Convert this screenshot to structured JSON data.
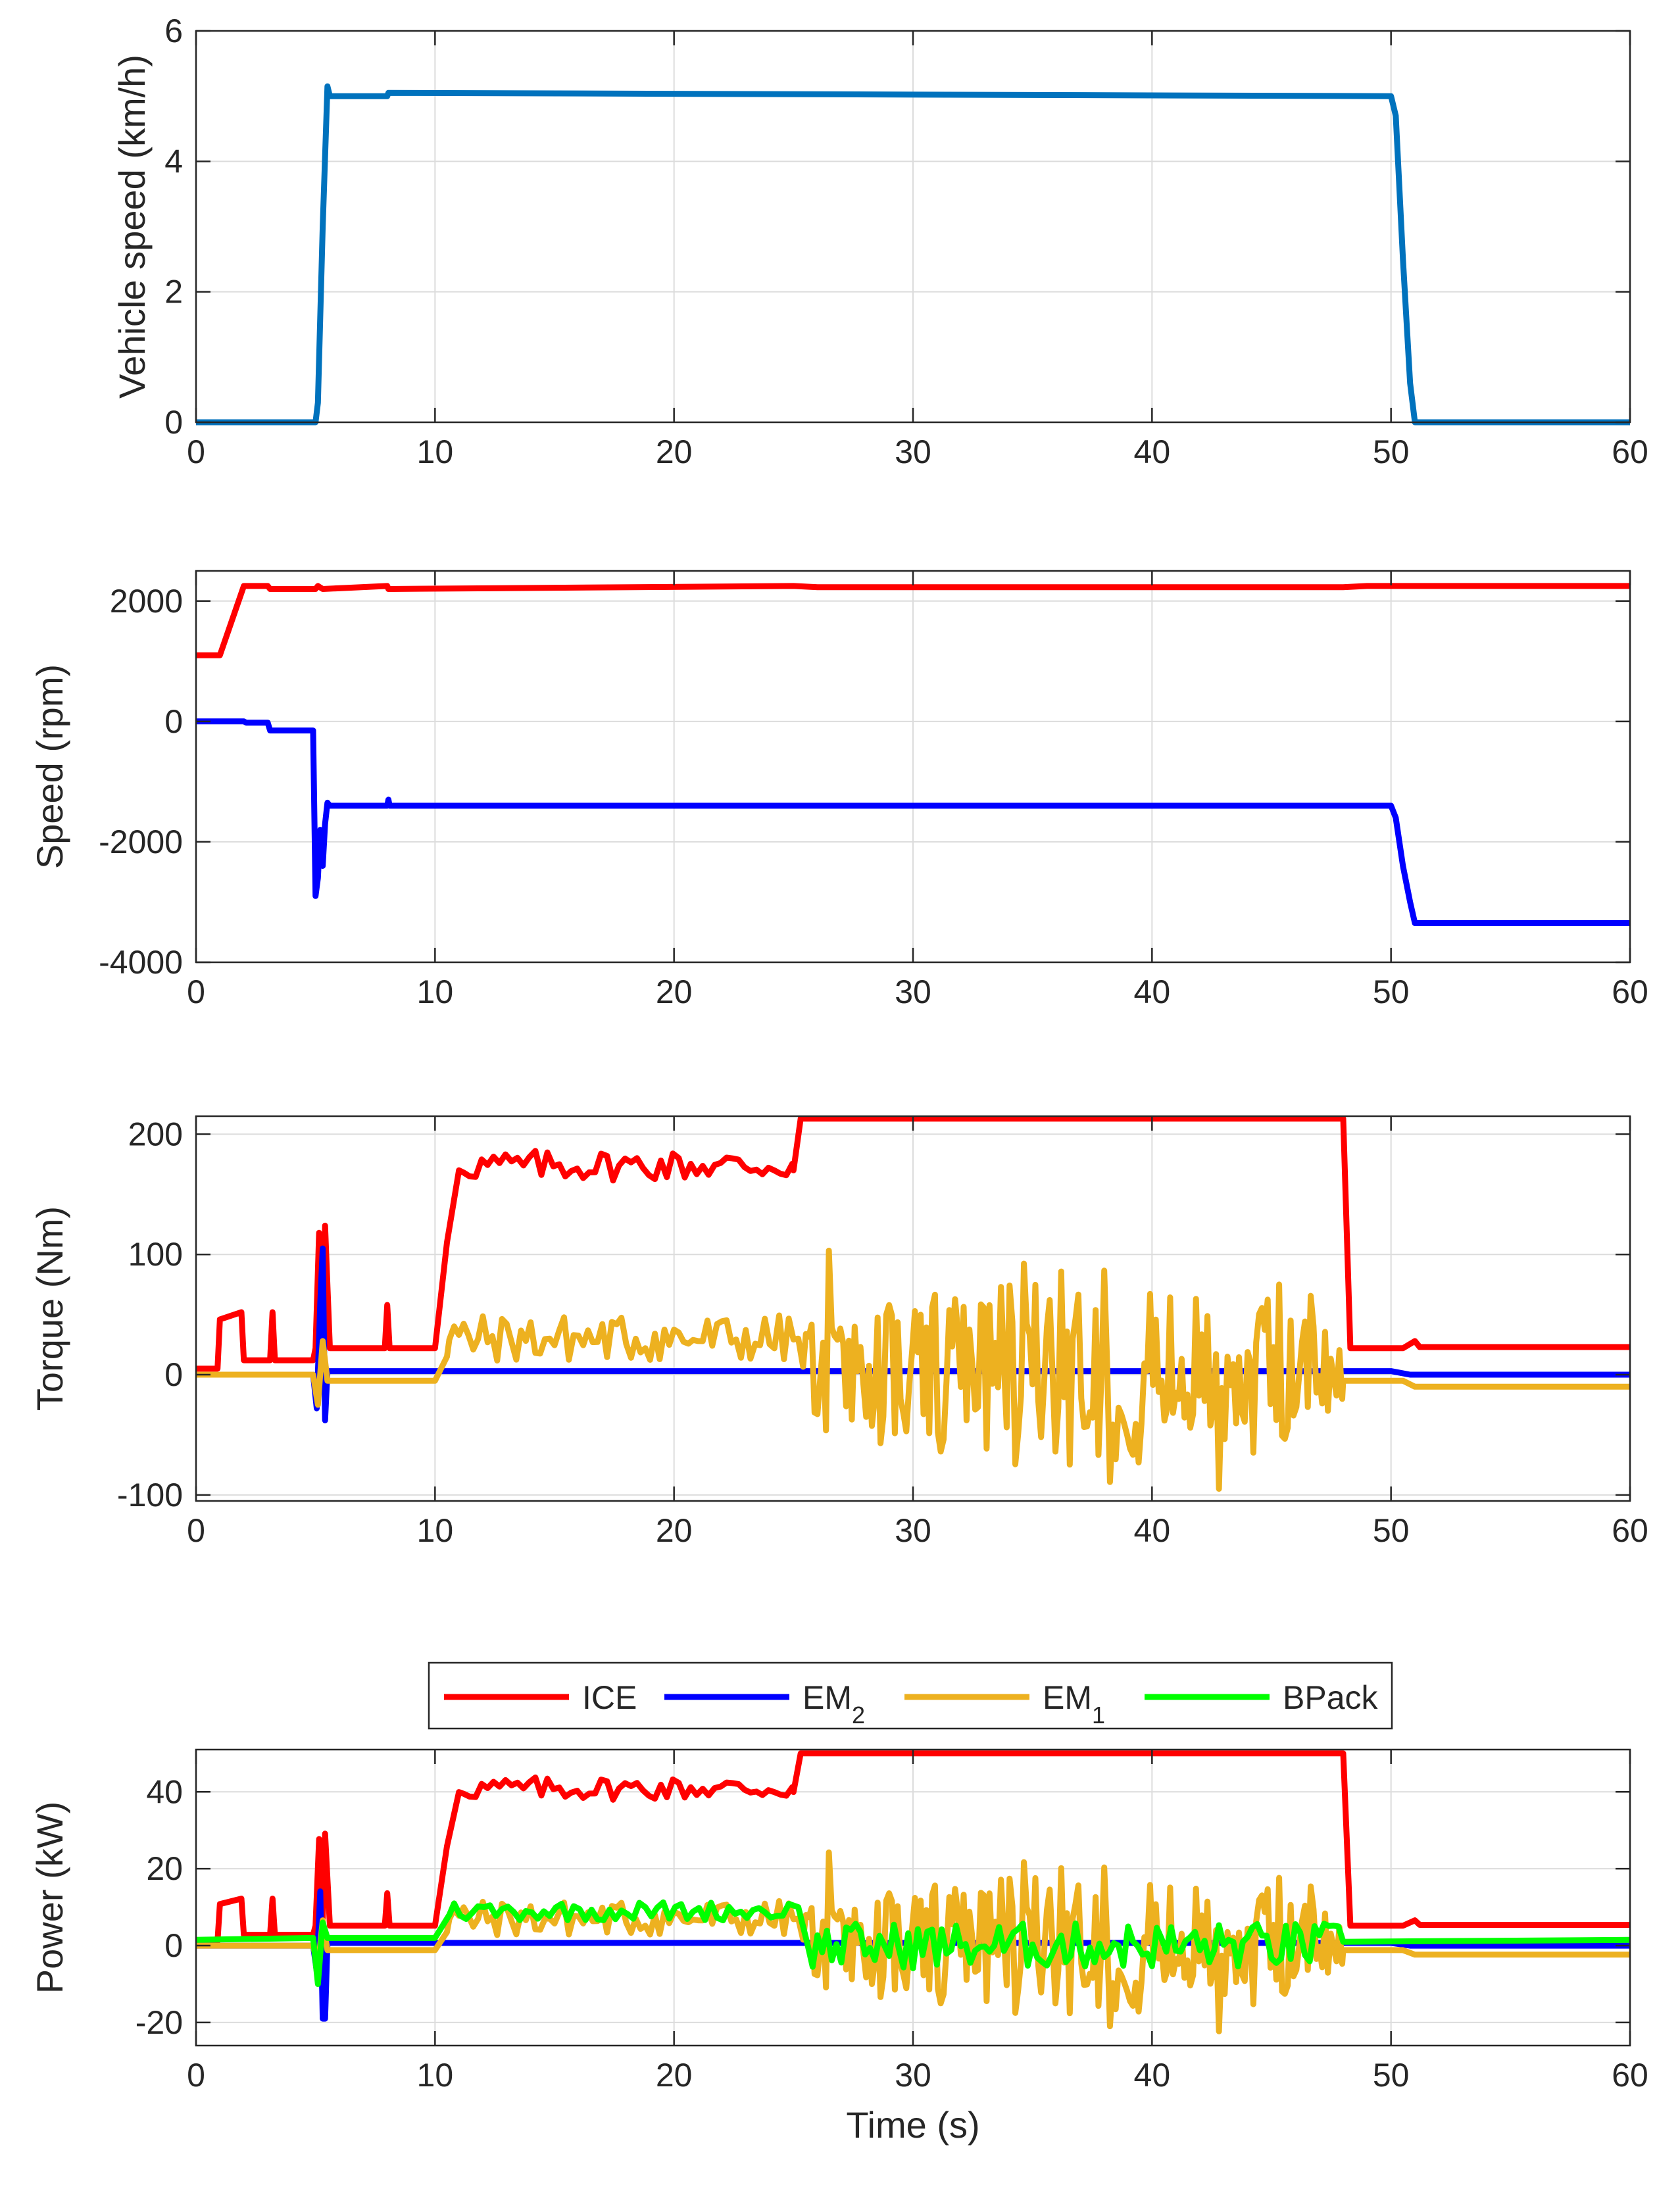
{
  "chart_data": [
    {
      "id": "vehicle_speed",
      "type": "line",
      "ylabel": "Vehicle speed (km/h)",
      "xlabel": "",
      "xlim": [
        0,
        60
      ],
      "ylim": [
        0,
        6
      ],
      "xticks": [
        "0",
        "10",
        "20",
        "30",
        "40",
        "50",
        "60"
      ],
      "yticks": [
        "0",
        "2",
        "4",
        "6"
      ],
      "xtick_values": [
        0,
        10,
        20,
        30,
        40,
        50,
        60
      ],
      "ytick_values": [
        0,
        2,
        4,
        6
      ],
      "grid": true,
      "series": [
        {
          "name": "Vehicle speed",
          "color": "#0072BD",
          "x": [
            0,
            5,
            5.1,
            5.3,
            5.5,
            5.6,
            5.8,
            8,
            8.05,
            50,
            50.2,
            50.5,
            50.8,
            51,
            60
          ],
          "y": [
            0,
            0,
            0.3,
            3,
            5.15,
            5,
            5,
            5,
            5.05,
            5,
            4.7,
            2.5,
            0.6,
            0,
            0
          ]
        }
      ]
    },
    {
      "id": "motor_speed",
      "type": "line",
      "ylabel": "Speed (rpm)",
      "xlabel": "",
      "xlim": [
        0,
        60
      ],
      "ylim": [
        -4000,
        2500
      ],
      "xticks": [
        "0",
        "10",
        "20",
        "30",
        "40",
        "50",
        "60"
      ],
      "yticks": [
        "-4000",
        "-2000",
        "0",
        "2000"
      ],
      "xtick_values": [
        0,
        10,
        20,
        30,
        40,
        50,
        60
      ],
      "ytick_values": [
        -4000,
        -2000,
        0,
        2000
      ],
      "grid": true,
      "series": [
        {
          "name": "ICE",
          "color": "#FF0000",
          "x": [
            0,
            1,
            2,
            3,
            3.1,
            5,
            5.1,
            5.3,
            8,
            8.05,
            25,
            26,
            48,
            49,
            60
          ],
          "y": [
            1100,
            1100,
            2250,
            2250,
            2200,
            2200,
            2250,
            2200,
            2250,
            2200,
            2250,
            2230,
            2230,
            2250,
            2250
          ]
        },
        {
          "name": "EM2",
          "color": "#0000FF",
          "x": [
            0,
            2,
            2.1,
            3,
            3.1,
            4.9,
            5,
            5.1,
            5.2,
            5.3,
            5.4,
            5.5,
            5.6,
            8,
            8.05,
            8.1,
            50,
            50.2,
            50.5,
            50.8,
            51,
            60
          ],
          "y": [
            0,
            0,
            -20,
            -20,
            -150,
            -150,
            -2900,
            -2600,
            -1800,
            -2400,
            -1700,
            -1350,
            -1400,
            -1400,
            -1300,
            -1400,
            -1400,
            -1600,
            -2400,
            -3000,
            -3350,
            -3350
          ]
        }
      ]
    },
    {
      "id": "torque",
      "type": "line",
      "ylabel": "Torque (Nm)",
      "xlabel": "",
      "xlim": [
        0,
        60
      ],
      "ylim": [
        -105,
        215
      ],
      "xticks": [
        "0",
        "10",
        "20",
        "30",
        "40",
        "50",
        "60"
      ],
      "yticks": [
        "-100",
        "0",
        "100",
        "200"
      ],
      "xtick_values": [
        0,
        10,
        20,
        30,
        40,
        50,
        60
      ],
      "ytick_values": [
        -100,
        0,
        100,
        200
      ],
      "grid": true,
      "series": [
        {
          "name": "ICE",
          "color": "#FF0000",
          "pattern": "ice"
        },
        {
          "name": "EM2",
          "color": "#0000FF",
          "pattern": "em2"
        },
        {
          "name": "EM1",
          "color": "#EDB120",
          "pattern": "em1"
        }
      ]
    },
    {
      "id": "power",
      "type": "line",
      "ylabel": "Power (kW)",
      "xlabel": "Time (s)",
      "xlim": [
        0,
        60
      ],
      "ylim": [
        -26,
        51
      ],
      "xticks": [
        "0",
        "10",
        "20",
        "30",
        "40",
        "50",
        "60"
      ],
      "yticks": [
        "-20",
        "0",
        "20",
        "40"
      ],
      "xtick_values": [
        0,
        10,
        20,
        30,
        40,
        50,
        60
      ],
      "ytick_values": [
        -20,
        0,
        20,
        40
      ],
      "grid": true,
      "legend": {
        "placement": "top-outside",
        "entries": [
          {
            "label": "ICE",
            "sub": "",
            "color": "#FF0000"
          },
          {
            "label": "EM",
            "sub": "2",
            "color": "#0000FF"
          },
          {
            "label": "EM",
            "sub": "1",
            "color": "#EDB120"
          },
          {
            "label": "BPack",
            "sub": "",
            "color": "#00FF00"
          }
        ]
      },
      "series": [
        {
          "name": "ICE",
          "color": "#FF0000",
          "pattern": "ice"
        },
        {
          "name": "EM2",
          "color": "#0000FF",
          "pattern": "em2"
        },
        {
          "name": "EM1",
          "color": "#EDB120",
          "pattern": "em1"
        },
        {
          "name": "BPack",
          "color": "#00FF00",
          "pattern": "bpack"
        }
      ]
    }
  ]
}
